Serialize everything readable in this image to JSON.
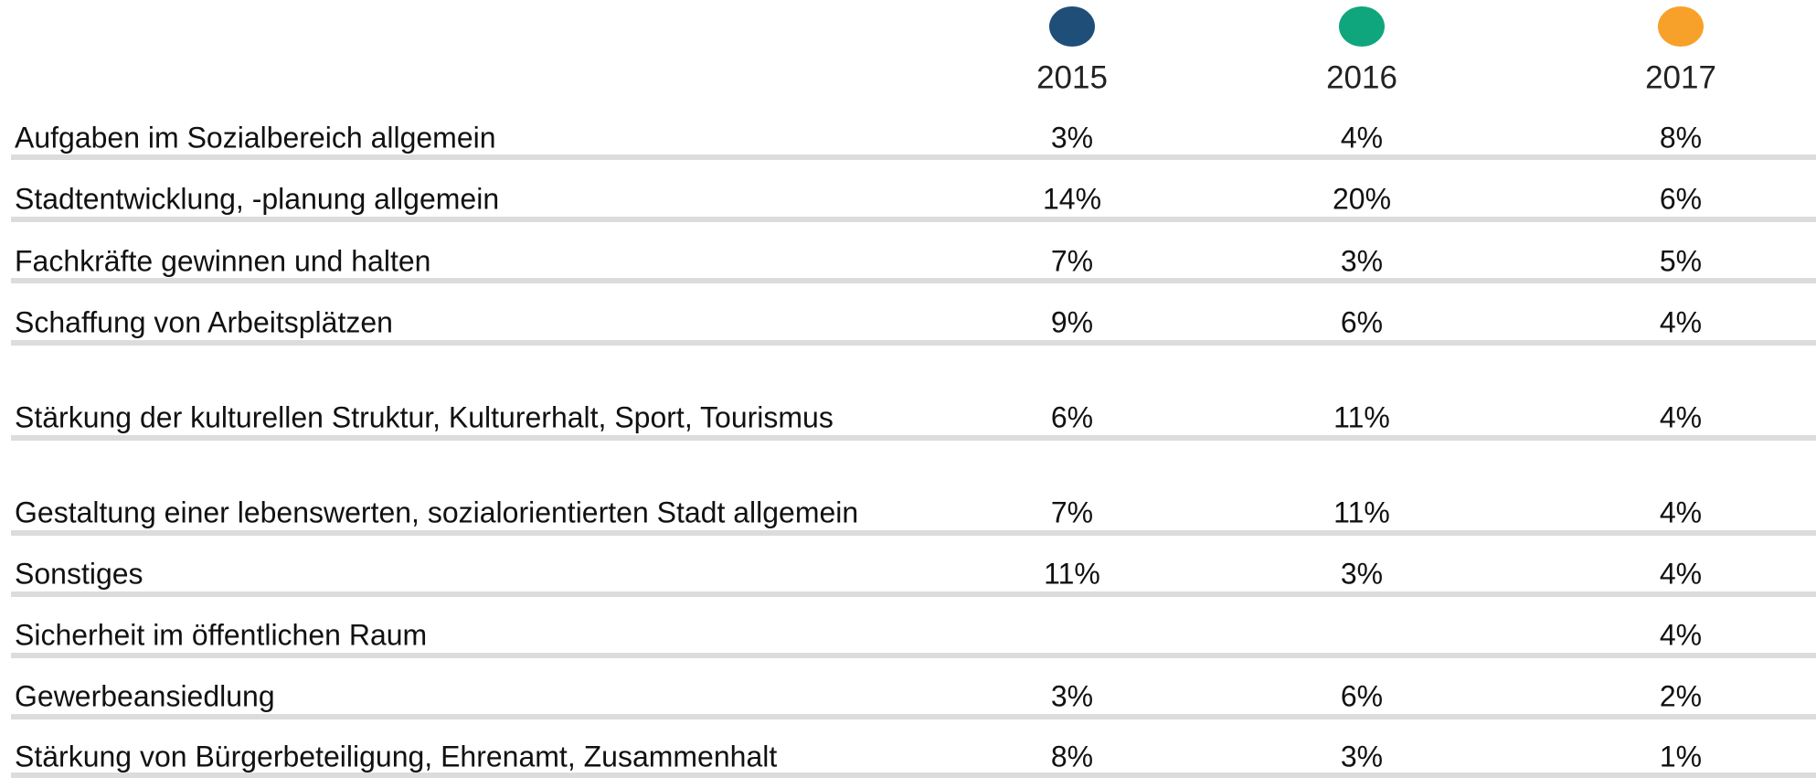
{
  "header": {
    "columns": [
      {
        "label": "2015",
        "color": "#1f4e79"
      },
      {
        "label": "2016",
        "color": "#10a67d"
      },
      {
        "label": "2017",
        "color": "#f7a12a"
      }
    ]
  },
  "table": {
    "rows": [
      {
        "label": "Aufgaben im Sozialbereich allgemein",
        "values": [
          "3%",
          "4%",
          "8%"
        ]
      },
      {
        "label": "Stadtentwicklung, -planung allgemein",
        "values": [
          "14%",
          "20%",
          "6%"
        ]
      },
      {
        "label": "Fachkräfte gewinnen und halten",
        "values": [
          "7%",
          "3%",
          "5%"
        ]
      },
      {
        "label": "Schaffung von Arbeitsplätzen",
        "values": [
          "9%",
          "6%",
          "4%"
        ]
      },
      {
        "label": "Stärkung der kulturellen Struktur, Kulturerhalt, Sport, Tourismus",
        "values": [
          "6%",
          "11%",
          "4%"
        ]
      },
      {
        "label": "Gestaltung einer lebenswerten, sozialorientierten Stadt allgemein",
        "values": [
          "7%",
          "11%",
          "4%"
        ]
      },
      {
        "label": "Sonstiges",
        "values": [
          "11%",
          "3%",
          "4%"
        ]
      },
      {
        "label": "Sicherheit im öffentlichen Raum",
        "values": [
          null,
          null,
          "4%"
        ]
      },
      {
        "label": "Gewerbeansiedlung",
        "values": [
          "3%",
          "6%",
          "2%"
        ]
      },
      {
        "label": "Stärkung von Bürgerbeteiligung, Ehrenamt, Zusammenhalt",
        "values": [
          "8%",
          "3%",
          "1%"
        ]
      }
    ]
  }
}
